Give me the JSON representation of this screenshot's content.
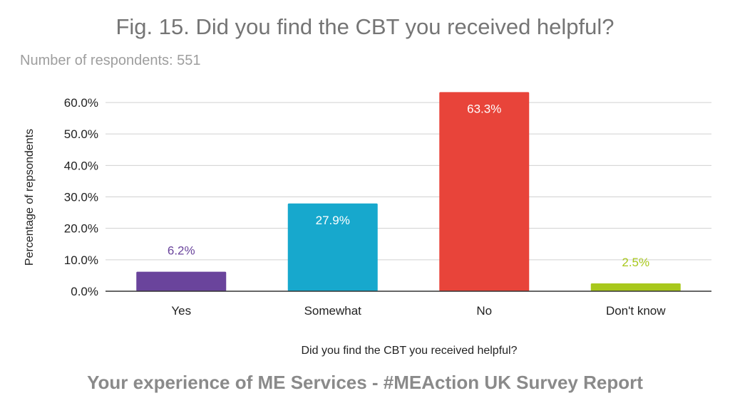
{
  "chart_data": {
    "type": "bar",
    "title": "Fig. 15. Did you find the CBT you received helpful?",
    "subtitle": "Number of respondents: 551",
    "xlabel": "Did you find the CBT you received helpful?",
    "ylabel": "Percentage of repsondents",
    "categories": [
      "Yes",
      "Somewhat",
      "No",
      "Don't know"
    ],
    "values": [
      6.2,
      27.9,
      63.3,
      2.5
    ],
    "data_labels": [
      "6.2%",
      "27.9%",
      "63.3%",
      "2.5%"
    ],
    "colors": [
      "#6a449c",
      "#17a8cd",
      "#e8443a",
      "#a8c81c"
    ],
    "label_colors": [
      "#6a449c",
      "#ffffff",
      "#ffffff",
      "#a8c81c"
    ],
    "label_position": [
      "outside",
      "inside",
      "inside",
      "outside"
    ],
    "ylim": [
      0,
      65
    ],
    "yticks": [
      0,
      10,
      20,
      30,
      40,
      50,
      60
    ],
    "ytick_labels": [
      "0.0%",
      "10.0%",
      "20.0%",
      "30.0%",
      "40.0%",
      "50.0%",
      "60.0%"
    ],
    "grid": true,
    "legend": "none"
  },
  "footer": "Your experience of ME Services - #MEAction UK Survey Report"
}
